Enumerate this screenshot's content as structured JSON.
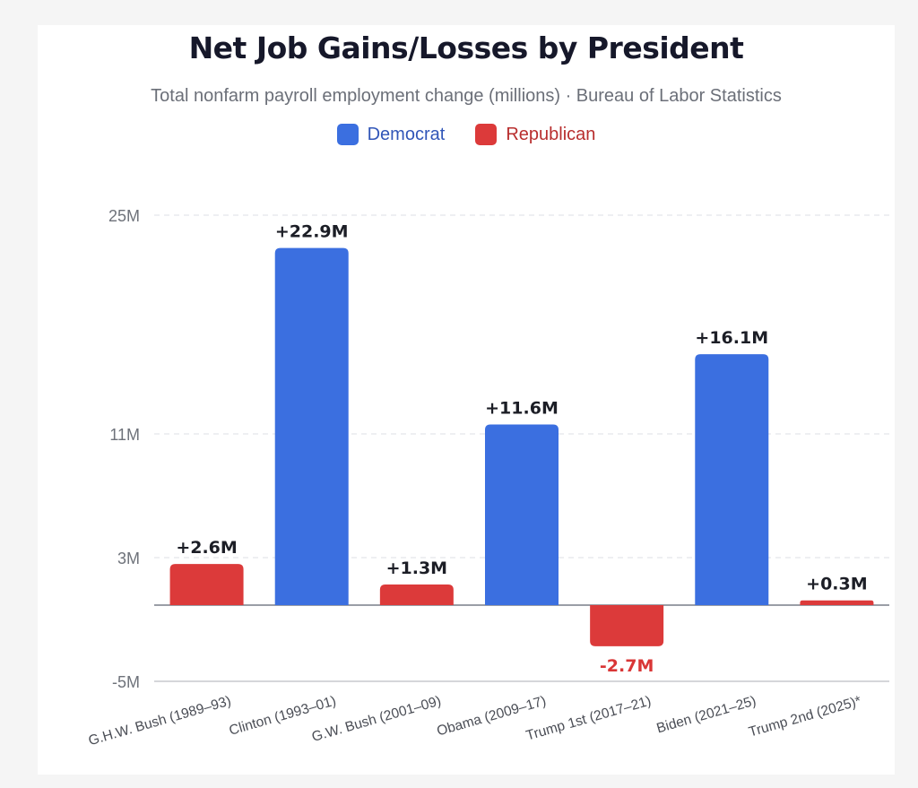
{
  "title": "Net Job Gains/Losses by President",
  "subtitle": "Total nonfarm payroll employment change (millions) · Bureau of Labor Statistics",
  "legend": [
    {
      "label": "Democrat",
      "color": "#3b6fe0",
      "text_color": "#3156b8"
    },
    {
      "label": "Republican",
      "color": "#dc3a3a",
      "text_color": "#b82e2e"
    }
  ],
  "chart_data": {
    "type": "bar",
    "categories": [
      "G.H.W. Bush (1989–93)",
      "Clinton (1993–01)",
      "G.W. Bush (2001–09)",
      "Obama (2009–17)",
      "Trump 1st (2017–21)",
      "Biden (2021–25)",
      "Trump 2nd (2025)*"
    ],
    "values": [
      2.6,
      22.9,
      1.3,
      11.6,
      -2.7,
      16.1,
      0.3
    ],
    "parties": [
      "Republican",
      "Democrat",
      "Republican",
      "Democrat",
      "Republican",
      "Democrat",
      "Republican"
    ],
    "data_labels": [
      "+2.6M",
      "+22.9M",
      "+1.3M",
      "+11.6M",
      "-2.7M",
      "+16.1M",
      "+0.3M"
    ],
    "ytick_values": [
      -5,
      3,
      11,
      25
    ],
    "ytick_labels": [
      "-5M",
      "3M",
      "11M",
      "25M"
    ],
    "ylim": [
      -5,
      25
    ],
    "grid": true,
    "legend_position": "top-center",
    "colors": {
      "Democrat": "#3b6fe0",
      "Republican": "#dc3a3a",
      "negative_label": "#d93636"
    }
  }
}
